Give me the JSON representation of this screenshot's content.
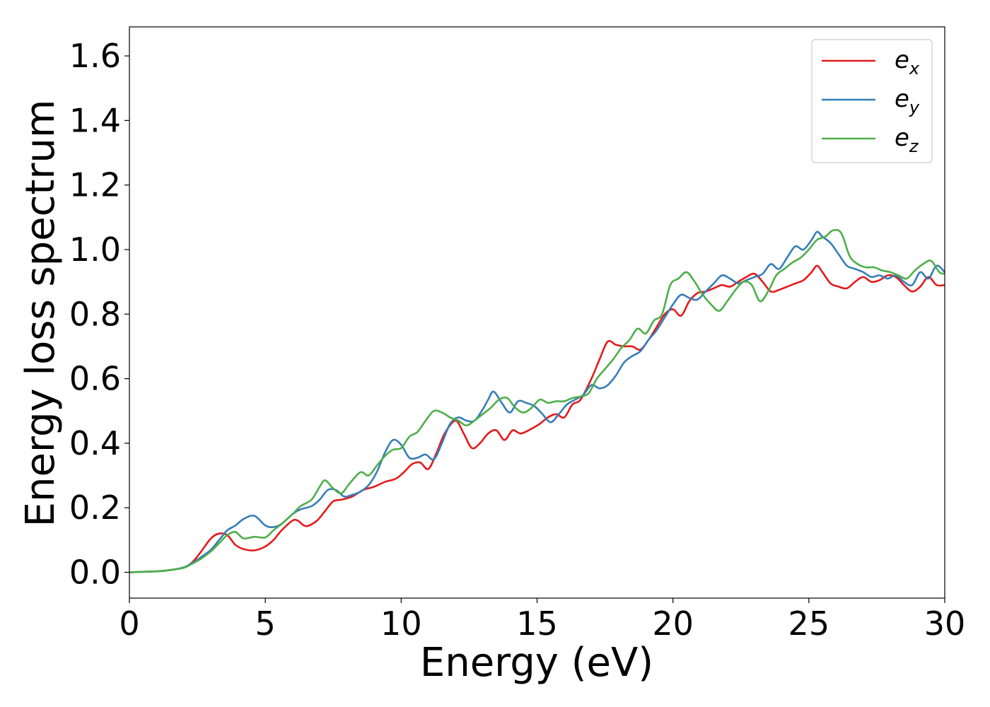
{
  "chart_data": {
    "type": "line",
    "title": "",
    "xlabel": "Energy (eV)",
    "ylabel": "Energy loss spectrum",
    "xlim": [
      0,
      30
    ],
    "ylim": [
      -0.08,
      1.69
    ],
    "xticks": [
      0,
      5,
      10,
      15,
      20,
      25,
      30
    ],
    "xtick_labels": [
      "0",
      "5",
      "10",
      "15",
      "20",
      "25",
      "30"
    ],
    "yticks": [
      0.0,
      0.2,
      0.4,
      0.6,
      0.8,
      1.0,
      1.2,
      1.4,
      1.6
    ],
    "ytick_labels": [
      "0.0",
      "0.2",
      "0.4",
      "0.6",
      "0.8",
      "1.0",
      "1.2",
      "1.4",
      "1.6"
    ],
    "grid": false,
    "legend_position": "top-right",
    "series": [
      {
        "name": "e_x",
        "legend_main": "e",
        "legend_sub": "x",
        "color": "#e41a1c",
        "x": [
          0,
          1,
          1.5,
          2,
          2.3,
          2.6,
          3,
          3.3,
          3.6,
          3.9,
          4.2,
          4.6,
          5,
          5.3,
          5.6,
          6,
          6.2,
          6.5,
          6.9,
          7.2,
          7.5,
          7.8,
          8.2,
          8.6,
          9,
          9.4,
          9.8,
          10.1,
          10.4,
          10.7,
          11,
          11.3,
          11.6,
          12,
          12.3,
          12.6,
          12.9,
          13.2,
          13.5,
          13.8,
          14.1,
          14.4,
          14.8,
          15.1,
          15.4,
          15.7,
          16,
          16.3,
          16.6,
          17,
          17.3,
          17.6,
          17.9,
          18.2,
          18.5,
          18.8,
          19.1,
          19.4,
          19.7,
          20,
          20.3,
          20.6,
          20.9,
          21.2,
          21.5,
          21.8,
          22.1,
          22.4,
          22.7,
          23,
          23.3,
          23.6,
          23.9,
          24.2,
          24.5,
          24.8,
          25.1,
          25.3,
          25.5,
          25.8,
          26.1,
          26.4,
          26.7,
          27,
          27.3,
          27.6,
          27.9,
          28.2,
          28.5,
          28.8,
          29.1,
          29.4,
          29.7,
          30
        ],
        "y": [
          0.0,
          0.003,
          0.007,
          0.015,
          0.03,
          0.06,
          0.105,
          0.12,
          0.115,
          0.085,
          0.072,
          0.068,
          0.08,
          0.1,
          0.13,
          0.16,
          0.16,
          0.143,
          0.16,
          0.19,
          0.22,
          0.225,
          0.235,
          0.255,
          0.265,
          0.28,
          0.29,
          0.31,
          0.335,
          0.34,
          0.32,
          0.37,
          0.43,
          0.47,
          0.43,
          0.385,
          0.4,
          0.43,
          0.44,
          0.41,
          0.44,
          0.43,
          0.445,
          0.46,
          0.48,
          0.49,
          0.48,
          0.52,
          0.535,
          0.6,
          0.66,
          0.715,
          0.705,
          0.7,
          0.7,
          0.69,
          0.72,
          0.76,
          0.8,
          0.815,
          0.795,
          0.84,
          0.865,
          0.87,
          0.88,
          0.89,
          0.885,
          0.9,
          0.915,
          0.925,
          0.9,
          0.87,
          0.875,
          0.885,
          0.895,
          0.905,
          0.93,
          0.95,
          0.93,
          0.895,
          0.885,
          0.88,
          0.9,
          0.915,
          0.9,
          0.905,
          0.92,
          0.915,
          0.89,
          0.87,
          0.885,
          0.915,
          0.89,
          0.89
        ]
      },
      {
        "name": "e_y",
        "legend_main": "e",
        "legend_sub": "y",
        "color": "#377eb8",
        "x": [
          0,
          1,
          1.5,
          2,
          2.3,
          2.6,
          3,
          3.3,
          3.6,
          3.9,
          4.2,
          4.6,
          5,
          5.3,
          5.6,
          6,
          6.3,
          6.7,
          7,
          7.3,
          7.6,
          7.9,
          8.2,
          8.5,
          8.8,
          9.1,
          9.4,
          9.7,
          10,
          10.3,
          10.6,
          10.9,
          11.2,
          11.5,
          11.8,
          12.1,
          12.4,
          12.7,
          13,
          13.2,
          13.4,
          13.7,
          14,
          14.3,
          14.6,
          14.9,
          15.2,
          15.5,
          15.8,
          16.1,
          16.4,
          16.7,
          17,
          17.3,
          17.6,
          17.9,
          18.2,
          18.5,
          18.8,
          19.1,
          19.4,
          19.7,
          20,
          20.3,
          20.6,
          20.9,
          21.2,
          21.5,
          21.8,
          22.1,
          22.4,
          22.7,
          23,
          23.3,
          23.6,
          23.9,
          24.2,
          24.5,
          24.8,
          25.1,
          25.3,
          25.5,
          25.8,
          26.1,
          26.4,
          26.7,
          27,
          27.3,
          27.6,
          27.9,
          28.2,
          28.5,
          28.8,
          29.1,
          29.4,
          29.7,
          30
        ],
        "y": [
          0.0,
          0.003,
          0.007,
          0.015,
          0.028,
          0.045,
          0.07,
          0.1,
          0.13,
          0.145,
          0.165,
          0.175,
          0.145,
          0.14,
          0.15,
          0.18,
          0.195,
          0.205,
          0.225,
          0.255,
          0.255,
          0.235,
          0.24,
          0.25,
          0.27,
          0.31,
          0.37,
          0.41,
          0.395,
          0.355,
          0.355,
          0.365,
          0.35,
          0.4,
          0.46,
          0.48,
          0.47,
          0.47,
          0.505,
          0.535,
          0.56,
          0.525,
          0.495,
          0.53,
          0.525,
          0.515,
          0.49,
          0.465,
          0.49,
          0.52,
          0.535,
          0.55,
          0.58,
          0.57,
          0.58,
          0.61,
          0.65,
          0.67,
          0.685,
          0.72,
          0.75,
          0.79,
          0.83,
          0.86,
          0.85,
          0.845,
          0.87,
          0.895,
          0.92,
          0.91,
          0.895,
          0.905,
          0.915,
          0.925,
          0.955,
          0.94,
          0.975,
          1.01,
          1.0,
          1.03,
          1.055,
          1.04,
          1.02,
          0.985,
          0.95,
          0.94,
          0.93,
          0.915,
          0.92,
          0.91,
          0.92,
          0.9,
          0.89,
          0.93,
          0.91,
          0.95,
          0.93
        ]
      },
      {
        "name": "e_z",
        "legend_main": "e",
        "legend_sub": "z",
        "color": "#4daf4a",
        "x": [
          0,
          1,
          1.5,
          2,
          2.3,
          2.6,
          3,
          3.3,
          3.6,
          3.9,
          4.2,
          4.6,
          5,
          5.3,
          5.6,
          6,
          6.3,
          6.7,
          7,
          7.2,
          7.5,
          7.8,
          8.1,
          8.5,
          8.8,
          9.1,
          9.4,
          9.7,
          10,
          10.3,
          10.6,
          10.9,
          11.2,
          11.5,
          11.8,
          12.1,
          12.4,
          12.7,
          13,
          13.3,
          13.6,
          13.9,
          14.2,
          14.5,
          14.8,
          15.1,
          15.4,
          15.7,
          16,
          16.3,
          16.6,
          16.9,
          17.2,
          17.5,
          17.8,
          18.1,
          18.4,
          18.7,
          19,
          19.3,
          19.6,
          19.9,
          20.2,
          20.5,
          20.8,
          21.1,
          21.4,
          21.7,
          22,
          22.3,
          22.6,
          22.9,
          23.2,
          23.5,
          23.8,
          24.1,
          24.4,
          24.7,
          25,
          25.3,
          25.6,
          25.9,
          26.2,
          26.5,
          26.8,
          27.1,
          27.4,
          27.7,
          28,
          28.3,
          28.6,
          28.9,
          29.2,
          29.5,
          29.8,
          30
        ],
        "y": [
          0.0,
          0.003,
          0.007,
          0.014,
          0.026,
          0.04,
          0.065,
          0.09,
          0.115,
          0.125,
          0.105,
          0.11,
          0.108,
          0.13,
          0.15,
          0.18,
          0.205,
          0.225,
          0.265,
          0.285,
          0.26,
          0.245,
          0.275,
          0.31,
          0.3,
          0.33,
          0.36,
          0.38,
          0.385,
          0.42,
          0.435,
          0.47,
          0.5,
          0.495,
          0.48,
          0.47,
          0.455,
          0.47,
          0.49,
          0.51,
          0.535,
          0.54,
          0.51,
          0.495,
          0.51,
          0.535,
          0.525,
          0.53,
          0.53,
          0.54,
          0.545,
          0.555,
          0.6,
          0.63,
          0.66,
          0.695,
          0.72,
          0.755,
          0.74,
          0.78,
          0.8,
          0.89,
          0.91,
          0.93,
          0.9,
          0.86,
          0.83,
          0.81,
          0.84,
          0.875,
          0.9,
          0.89,
          0.84,
          0.87,
          0.92,
          0.94,
          0.96,
          0.975,
          1.0,
          1.03,
          1.04,
          1.06,
          1.05,
          0.98,
          0.955,
          0.945,
          0.945,
          0.935,
          0.93,
          0.92,
          0.91,
          0.935,
          0.955,
          0.965,
          0.93,
          0.925
        ]
      }
    ]
  }
}
